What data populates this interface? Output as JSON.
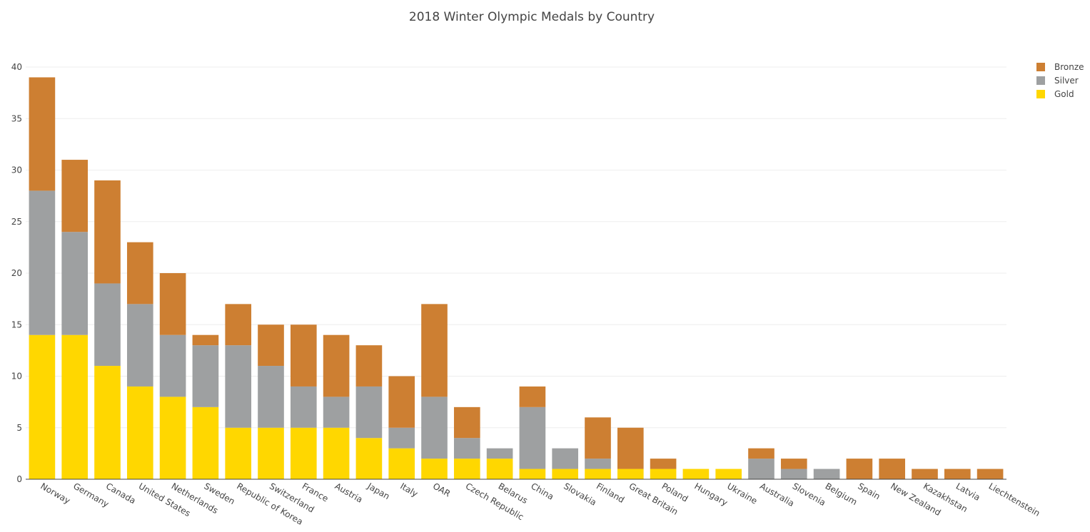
{
  "chart_data": {
    "type": "bar",
    "barmode": "stack",
    "title": "2018 Winter Olympic Medals by Country",
    "xlabel": "",
    "ylabel": "",
    "ylim": [
      0,
      40
    ],
    "yticks": [
      0,
      5,
      10,
      15,
      20,
      25,
      30,
      35,
      40
    ],
    "grid": true,
    "legend_position": "top-right",
    "categories": [
      "Norway",
      "Germany",
      "Canada",
      "United States",
      "Netherlands",
      "Sweden",
      "Republic of Korea",
      "Switzerland",
      "France",
      "Austria",
      "Japan",
      "Italy",
      "OAR",
      "Czech Republic",
      "Belarus",
      "China",
      "Slovakia",
      "Finland",
      "Great Britain",
      "Poland",
      "Hungary",
      "Ukraine",
      "Australia",
      "Slovenia",
      "Belgium",
      "Spain",
      "New Zealand",
      "Kazakhstan",
      "Latvia",
      "Liechtenstein"
    ],
    "series": [
      {
        "name": "Gold",
        "color": "#FFD700",
        "values": [
          14,
          14,
          11,
          9,
          8,
          7,
          5,
          5,
          5,
          5,
          4,
          3,
          2,
          2,
          2,
          1,
          1,
          1,
          1,
          1,
          1,
          1,
          0,
          0,
          0,
          0,
          0,
          0,
          0,
          0
        ]
      },
      {
        "name": "Silver",
        "color": "#9EA0A1",
        "values": [
          14,
          10,
          8,
          8,
          6,
          6,
          8,
          6,
          4,
          3,
          5,
          2,
          6,
          2,
          1,
          6,
          2,
          1,
          0,
          0,
          0,
          0,
          2,
          1,
          1,
          0,
          0,
          0,
          0,
          0
        ]
      },
      {
        "name": "Bronze",
        "color": "#CD7F32",
        "values": [
          11,
          7,
          10,
          6,
          6,
          1,
          4,
          4,
          6,
          6,
          4,
          5,
          9,
          3,
          0,
          2,
          0,
          4,
          4,
          1,
          0,
          0,
          1,
          1,
          0,
          2,
          2,
          1,
          1,
          1
        ]
      }
    ],
    "legend_order": [
      "Bronze",
      "Silver",
      "Gold"
    ]
  }
}
